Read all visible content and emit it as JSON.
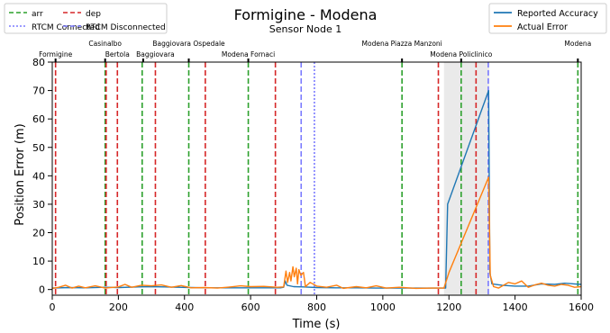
{
  "chart_data": {
    "type": "line",
    "title": "Formigine - Modena",
    "subtitle": "Sensor Node 1",
    "xlabel": "Time (s)",
    "ylabel": "Position Error (m)",
    "xlim": [
      0,
      1600
    ],
    "ylim": [
      -2,
      80
    ],
    "xticks": [
      0,
      200,
      400,
      600,
      800,
      1000,
      1200,
      1400,
      1600
    ],
    "yticks": [
      0,
      10,
      20,
      30,
      40,
      50,
      60,
      70,
      80
    ],
    "grid": false,
    "series": [
      {
        "name": "Reported Accuracy",
        "color": "#1f77b4",
        "points": [
          [
            0,
            0.5
          ],
          [
            50,
            0.7
          ],
          [
            100,
            0.6
          ],
          [
            160,
            0.8
          ],
          [
            200,
            0.7
          ],
          [
            260,
            0.9
          ],
          [
            300,
            1.0
          ],
          [
            340,
            0.9
          ],
          [
            380,
            0.8
          ],
          [
            420,
            0.7
          ],
          [
            470,
            0.6
          ],
          [
            520,
            0.6
          ],
          [
            580,
            0.6
          ],
          [
            640,
            0.6
          ],
          [
            690,
            0.6
          ],
          [
            700,
            0.8
          ],
          [
            705,
            3.0
          ],
          [
            710,
            1.5
          ],
          [
            730,
            1.0
          ],
          [
            760,
            0.9
          ],
          [
            800,
            0.7
          ],
          [
            860,
            0.6
          ],
          [
            920,
            0.6
          ],
          [
            980,
            0.5
          ],
          [
            1040,
            0.5
          ],
          [
            1100,
            0.5
          ],
          [
            1160,
            0.5
          ],
          [
            1190,
            0.5
          ],
          [
            1196,
            30
          ],
          [
            1320,
            70
          ],
          [
            1324,
            6
          ],
          [
            1330,
            2.0
          ],
          [
            1360,
            1.5
          ],
          [
            1400,
            1.2
          ],
          [
            1440,
            1.2
          ],
          [
            1480,
            2.0
          ],
          [
            1520,
            1.8
          ],
          [
            1550,
            2.2
          ],
          [
            1600,
            1.8
          ]
        ]
      },
      {
        "name": "Actual Error",
        "color": "#ff7f0e",
        "points": [
          [
            0,
            0.4
          ],
          [
            20,
            0.8
          ],
          [
            40,
            1.5
          ],
          [
            60,
            0.5
          ],
          [
            80,
            1.2
          ],
          [
            100,
            0.6
          ],
          [
            130,
            1.3
          ],
          [
            160,
            0.5
          ],
          [
            200,
            0.9
          ],
          [
            220,
            1.8
          ],
          [
            240,
            0.8
          ],
          [
            270,
            1.5
          ],
          [
            300,
            1.3
          ],
          [
            330,
            1.6
          ],
          [
            360,
            0.8
          ],
          [
            390,
            1.4
          ],
          [
            420,
            0.6
          ],
          [
            460,
            0.7
          ],
          [
            500,
            0.5
          ],
          [
            540,
            0.9
          ],
          [
            570,
            1.3
          ],
          [
            600,
            1.0
          ],
          [
            640,
            1.1
          ],
          [
            680,
            0.8
          ],
          [
            700,
            0.9
          ],
          [
            707,
            6.5
          ],
          [
            712,
            2.5
          ],
          [
            718,
            6.0
          ],
          [
            722,
            3.0
          ],
          [
            728,
            8.0
          ],
          [
            732,
            4.5
          ],
          [
            738,
            7.5
          ],
          [
            742,
            2.0
          ],
          [
            746,
            7.0
          ],
          [
            752,
            5.0
          ],
          [
            760,
            6.0
          ],
          [
            766,
            1.0
          ],
          [
            780,
            2.5
          ],
          [
            800,
            1.2
          ],
          [
            830,
            0.8
          ],
          [
            860,
            1.5
          ],
          [
            880,
            0.4
          ],
          [
            920,
            1.0
          ],
          [
            950,
            0.6
          ],
          [
            980,
            1.3
          ],
          [
            1010,
            0.5
          ],
          [
            1050,
            0.8
          ],
          [
            1100,
            0.4
          ],
          [
            1150,
            0.5
          ],
          [
            1185,
            0.5
          ],
          [
            1200,
            6.0
          ],
          [
            1320,
            39.5
          ],
          [
            1325,
            5.0
          ],
          [
            1335,
            1.0
          ],
          [
            1350,
            0.5
          ],
          [
            1380,
            2.5
          ],
          [
            1400,
            2.0
          ],
          [
            1420,
            3.0
          ],
          [
            1440,
            0.8
          ],
          [
            1460,
            1.6
          ],
          [
            1480,
            2.2
          ],
          [
            1500,
            1.5
          ],
          [
            1520,
            1.2
          ],
          [
            1540,
            1.8
          ],
          [
            1560,
            1.5
          ],
          [
            1580,
            0.8
          ],
          [
            1600,
            1.0
          ]
        ]
      }
    ],
    "vlines": [
      {
        "x": 10,
        "kind": "dep"
      },
      {
        "x": 160,
        "kind": "arr"
      },
      {
        "x": 163,
        "kind": "dep"
      },
      {
        "x": 197,
        "kind": "dep"
      },
      {
        "x": 272,
        "kind": "arr"
      },
      {
        "x": 312,
        "kind": "dep"
      },
      {
        "x": 413,
        "kind": "arr"
      },
      {
        "x": 463,
        "kind": "dep"
      },
      {
        "x": 593,
        "kind": "arr"
      },
      {
        "x": 675,
        "kind": "dep"
      },
      {
        "x": 753,
        "kind": "rtcm_disconnected"
      },
      {
        "x": 793,
        "kind": "rtcm_connected"
      },
      {
        "x": 1058,
        "kind": "arr"
      },
      {
        "x": 1168,
        "kind": "dep"
      },
      {
        "x": 1237,
        "kind": "arr"
      },
      {
        "x": 1282,
        "kind": "dep"
      },
      {
        "x": 1319,
        "kind": "rtcm_disconnected"
      },
      {
        "x": 1590,
        "kind": "arr"
      }
    ],
    "shaded_region": {
      "x0": 1185,
      "x1": 1322,
      "color": "#d9d9d9"
    },
    "stations": [
      {
        "name": "Formigine",
        "x": 10,
        "row": 2
      },
      {
        "name": "Casinalbo",
        "x": 160,
        "row": 1
      },
      {
        "name": "Bertola",
        "x": 197,
        "row": 2
      },
      {
        "name": "Baggiovara",
        "x": 312,
        "row": 2
      },
      {
        "name": "Baggiovara Ospedale",
        "x": 413,
        "row": 1
      },
      {
        "name": "Modena Fornaci",
        "x": 593,
        "row": 2
      },
      {
        "name": "Modena Piazza Manzoni",
        "x": 1058,
        "row": 1
      },
      {
        "name": "Modena Policlinico",
        "x": 1237,
        "row": 2
      },
      {
        "name": "Modena",
        "x": 1590,
        "row": 1
      }
    ],
    "station_ticks": [
      10,
      160,
      275,
      413,
      593,
      1058,
      1237,
      1590
    ],
    "legend_left": {
      "placement": "top-left",
      "items": [
        {
          "label": "arr",
          "color": "#2ca02c",
          "dash": "dashed"
        },
        {
          "label": "dep",
          "color": "#d62728",
          "dash": "dashed"
        },
        {
          "label": "RTCM Connected",
          "color": "#7b7bff",
          "dash": "dotted"
        },
        {
          "label": "RTCM Disconnected",
          "color": "#7b7bff",
          "dash": "dashed"
        }
      ]
    },
    "legend_right": {
      "placement": "top-right",
      "items": [
        {
          "label": "Reported Accuracy",
          "color": "#1f77b4"
        },
        {
          "label": "Actual Error",
          "color": "#ff7f0e"
        }
      ]
    },
    "colors": {
      "arr": "#2ca02c",
      "dep": "#d62728",
      "rtcm": "#7b7bff"
    }
  }
}
